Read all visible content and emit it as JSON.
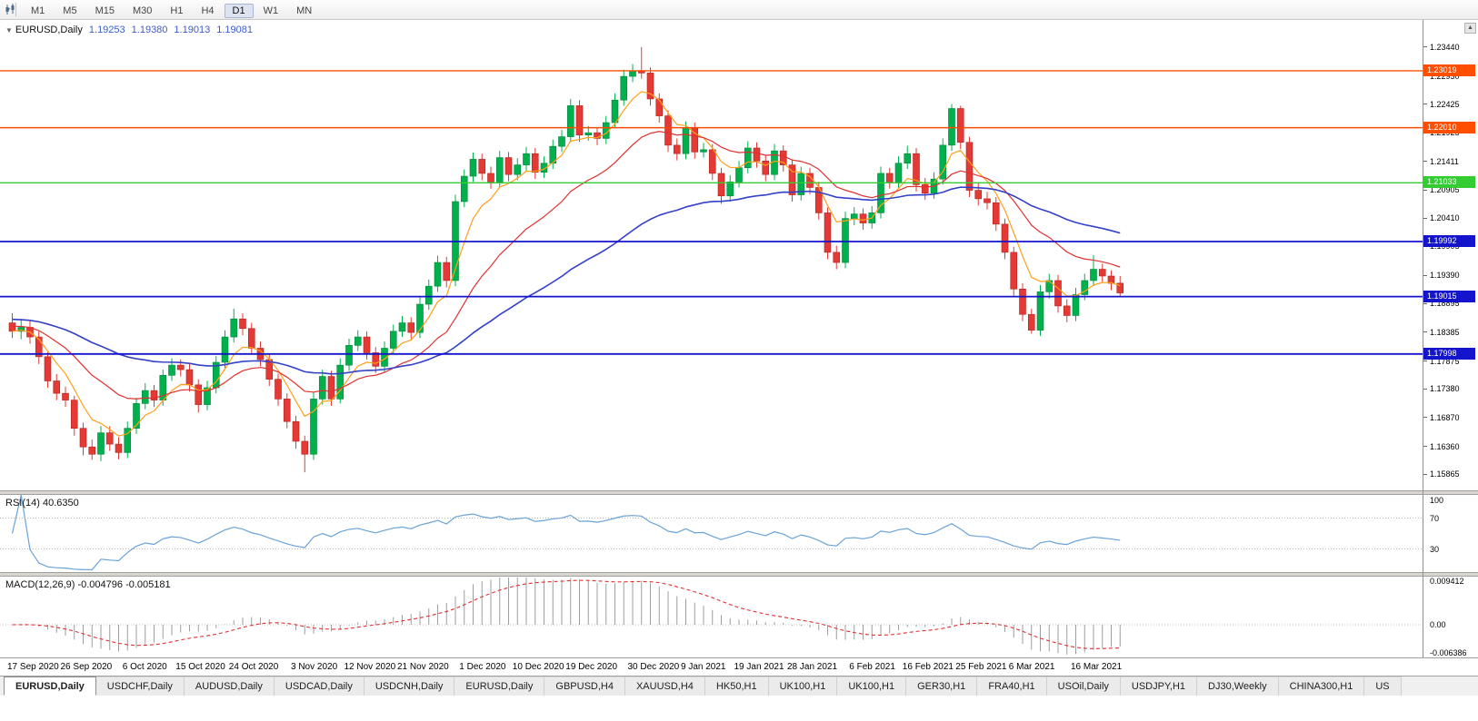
{
  "toolbar": {
    "timeframes": [
      "M1",
      "M5",
      "M15",
      "M30",
      "H1",
      "H4",
      "D1",
      "W1",
      "MN"
    ],
    "active_timeframe": "D1"
  },
  "icons": {
    "collapse": "▼",
    "dropdown_caret": "▾",
    "scroll_up": "▲"
  },
  "chart": {
    "title": "EURUSD,Daily",
    "ohlc": {
      "open": "1.19253",
      "high": "1.19380",
      "low": "1.19013",
      "close": "1.19081"
    },
    "price_axis_ticks": [
      "1.23440",
      "1.22930",
      "1.22425",
      "1.21925",
      "1.21411",
      "1.20905",
      "1.20410",
      "1.19905",
      "1.19390",
      "1.18895",
      "1.18385",
      "1.17875",
      "1.17380",
      "1.16870",
      "1.16360",
      "1.15865"
    ],
    "hlines": [
      {
        "price": 1.23019,
        "label": "1.23019",
        "color": "#ff4e00",
        "width": 1.4
      },
      {
        "price": 1.2201,
        "label": "1.22010",
        "color": "#ff4e00",
        "width": 1.4
      },
      {
        "price": 1.21033,
        "label": "1.21033",
        "color": "#33cc33",
        "width": 1.4
      },
      {
        "price": 1.19992,
        "label": "1.19992",
        "color": "#1414cc",
        "width": 1.8
      },
      {
        "price": 1.19015,
        "label": "1.19015",
        "color": "#1414cc",
        "width": 1.8
      },
      {
        "price": 1.17998,
        "label": "1.17998",
        "color": "#1414cc",
        "width": 1.8
      }
    ],
    "colors": {
      "up": "#00b04c",
      "up_border": "#00843a",
      "down": "#e53935",
      "down_border": "#b02421",
      "ma_fast": "#ff9f1a",
      "ma_mid": "#e03030",
      "ma_slow": "#3340c8",
      "rsi": "#6aa3d8",
      "macd_hist": "#9e9e9e",
      "macd_signal": "#e03030"
    }
  },
  "rsi": {
    "label": "RSI(14) 40.6350",
    "ticks": [
      "100",
      "70",
      "30"
    ]
  },
  "macd": {
    "label": "MACD(12,26,9) -0.004796 -0.005181",
    "ticks": [
      "0.009412",
      "0.00",
      "-0.006386"
    ]
  },
  "tabs": [
    {
      "label": "EURUSD,Daily",
      "active": true
    },
    {
      "label": "USDCHF,Daily",
      "active": false
    },
    {
      "label": "AUDUSD,Daily",
      "active": false
    },
    {
      "label": "USDCAD,Daily",
      "active": false
    },
    {
      "label": "USDCNH,Daily",
      "active": false
    },
    {
      "label": "EURUSD,Daily",
      "active": false
    },
    {
      "label": "GBPUSD,H4",
      "active": false
    },
    {
      "label": "XAUUSD,H4",
      "active": false
    },
    {
      "label": "HK50,H1",
      "active": false
    },
    {
      "label": "UK100,H1",
      "active": false
    },
    {
      "label": "UK100,H1",
      "active": false
    },
    {
      "label": "GER30,H1",
      "active": false
    },
    {
      "label": "FRA40,H1",
      "active": false
    },
    {
      "label": "USOil,Daily",
      "active": false
    },
    {
      "label": "USDJPY,H1",
      "active": false
    },
    {
      "label": "DJ30,Weekly",
      "active": false
    },
    {
      "label": "CHINA300,H1",
      "active": false
    },
    {
      "label": "US",
      "active": false
    }
  ],
  "chart_data": {
    "type": "candlestick",
    "symbol": "EURUSD",
    "timeframe": "Daily",
    "price_range": [
      1.1558,
      1.2392
    ],
    "indicators": {
      "rsi_period": 14,
      "rsi_value": 40.635,
      "macd_params": "12,26,9",
      "macd_value": -0.004796,
      "macd_signal_value": -0.005181,
      "ma_periods": {
        "fast": 6,
        "mid": 18,
        "slow": 50
      }
    },
    "candles": [
      [
        1.1855,
        1.1872,
        1.1828,
        1.184
      ],
      [
        1.184,
        1.1862,
        1.1826,
        1.1847
      ],
      [
        1.1847,
        1.1858,
        1.1818,
        1.183
      ],
      [
        1.183,
        1.184,
        1.1782,
        1.1795
      ],
      [
        1.1795,
        1.1803,
        1.174,
        1.1752
      ],
      [
        1.1752,
        1.1764,
        1.1718,
        1.173
      ],
      [
        1.173,
        1.1742,
        1.1706,
        1.1718
      ],
      [
        1.1718,
        1.1726,
        1.1655,
        1.1668
      ],
      [
        1.1668,
        1.1678,
        1.162,
        1.1635
      ],
      [
        1.1635,
        1.1648,
        1.1612,
        1.1622
      ],
      [
        1.1622,
        1.1672,
        1.161,
        1.166
      ],
      [
        1.166,
        1.1672,
        1.1628,
        1.164
      ],
      [
        1.164,
        1.1652,
        1.1613,
        1.1625
      ],
      [
        1.1625,
        1.168,
        1.1615,
        1.1668
      ],
      [
        1.1668,
        1.1722,
        1.1658,
        1.1712
      ],
      [
        1.1712,
        1.1748,
        1.1702,
        1.1735
      ],
      [
        1.1735,
        1.1745,
        1.1706,
        1.1718
      ],
      [
        1.1718,
        1.1772,
        1.1708,
        1.1762
      ],
      [
        1.1762,
        1.1792,
        1.1752,
        1.178
      ],
      [
        1.178,
        1.179,
        1.176,
        1.1772
      ],
      [
        1.1772,
        1.1782,
        1.1733,
        1.1745
      ],
      [
        1.1745,
        1.1755,
        1.1696,
        1.171
      ],
      [
        1.171,
        1.1752,
        1.17,
        1.174
      ],
      [
        1.174,
        1.1796,
        1.173,
        1.1785
      ],
      [
        1.1785,
        1.1842,
        1.1775,
        1.183
      ],
      [
        1.183,
        1.188,
        1.182,
        1.1862
      ],
      [
        1.1862,
        1.1872,
        1.1833,
        1.1845
      ],
      [
        1.1845,
        1.1855,
        1.1798,
        1.181
      ],
      [
        1.181,
        1.1822,
        1.1778,
        1.179
      ],
      [
        1.179,
        1.18,
        1.1743,
        1.1755
      ],
      [
        1.1755,
        1.1765,
        1.1708,
        1.172
      ],
      [
        1.172,
        1.173,
        1.1668,
        1.168
      ],
      [
        1.168,
        1.169,
        1.1632,
        1.1645
      ],
      [
        1.1645,
        1.1655,
        1.159,
        1.1622
      ],
      [
        1.1622,
        1.1732,
        1.1612,
        1.172
      ],
      [
        1.172,
        1.1772,
        1.171,
        1.176
      ],
      [
        1.176,
        1.177,
        1.1708,
        1.172
      ],
      [
        1.172,
        1.1792,
        1.1712,
        1.178
      ],
      [
        1.178,
        1.1827,
        1.177,
        1.1815
      ],
      [
        1.1815,
        1.1842,
        1.1805,
        1.183
      ],
      [
        1.183,
        1.184,
        1.179,
        1.1802
      ],
      [
        1.1802,
        1.1812,
        1.1766,
        1.1778
      ],
      [
        1.1778,
        1.1822,
        1.1768,
        1.181
      ],
      [
        1.181,
        1.1852,
        1.18,
        1.184
      ],
      [
        1.184,
        1.1867,
        1.183,
        1.1855
      ],
      [
        1.1855,
        1.1865,
        1.1826,
        1.1838
      ],
      [
        1.1838,
        1.19,
        1.1828,
        1.1888
      ],
      [
        1.1888,
        1.1932,
        1.1878,
        1.192
      ],
      [
        1.192,
        1.1974,
        1.191,
        1.1962
      ],
      [
        1.1962,
        1.1972,
        1.1918,
        1.193
      ],
      [
        1.193,
        1.2082,
        1.192,
        1.207
      ],
      [
        1.207,
        1.2127,
        1.206,
        1.2115
      ],
      [
        1.2115,
        1.2157,
        1.2105,
        1.2145
      ],
      [
        1.2145,
        1.2155,
        1.2108,
        1.212
      ],
      [
        1.212,
        1.2132,
        1.2093,
        1.2105
      ],
      [
        1.2105,
        1.216,
        1.2095,
        1.2148
      ],
      [
        1.2148,
        1.2158,
        1.2106,
        1.2118
      ],
      [
        1.2118,
        1.2147,
        1.2108,
        1.2135
      ],
      [
        1.2135,
        1.2167,
        1.2125,
        1.2155
      ],
      [
        1.2155,
        1.2165,
        1.211,
        1.2122
      ],
      [
        1.2122,
        1.215,
        1.2112,
        1.2138
      ],
      [
        1.2138,
        1.218,
        1.2128,
        1.2168
      ],
      [
        1.2168,
        1.2197,
        1.2158,
        1.2185
      ],
      [
        1.2185,
        1.2252,
        1.2175,
        1.224
      ],
      [
        1.224,
        1.225,
        1.2176,
        1.2188
      ],
      [
        1.2188,
        1.2204,
        1.2178,
        1.2192
      ],
      [
        1.2192,
        1.2202,
        1.217,
        1.2182
      ],
      [
        1.2182,
        1.2222,
        1.2172,
        1.221
      ],
      [
        1.221,
        1.2262,
        1.22,
        1.225
      ],
      [
        1.225,
        1.2304,
        1.224,
        1.2292
      ],
      [
        1.2292,
        1.2314,
        1.2282,
        1.2302
      ],
      [
        1.2302,
        1.2344,
        1.2288,
        1.2298
      ],
      [
        1.2298,
        1.2308,
        1.224,
        1.2252
      ],
      [
        1.2252,
        1.2262,
        1.221,
        1.2222
      ],
      [
        1.2222,
        1.2232,
        1.2158,
        1.217
      ],
      [
        1.217,
        1.2182,
        1.2143,
        1.2155
      ],
      [
        1.2155,
        1.2212,
        1.2145,
        1.22
      ],
      [
        1.22,
        1.221,
        1.2146,
        1.2158
      ],
      [
        1.2158,
        1.2174,
        1.2148,
        1.2162
      ],
      [
        1.2162,
        1.2172,
        1.2108,
        1.212
      ],
      [
        1.212,
        1.213,
        1.2066,
        1.208
      ],
      [
        1.208,
        1.2117,
        1.207,
        1.2105
      ],
      [
        1.2105,
        1.2142,
        1.2095,
        1.213
      ],
      [
        1.213,
        1.2177,
        1.212,
        1.2165
      ],
      [
        1.2165,
        1.2175,
        1.213,
        1.2142
      ],
      [
        1.2142,
        1.2152,
        1.2106,
        1.2118
      ],
      [
        1.2118,
        1.2172,
        1.2108,
        1.216
      ],
      [
        1.216,
        1.217,
        1.2123,
        1.2135
      ],
      [
        1.2135,
        1.2145,
        1.207,
        1.2082
      ],
      [
        1.2082,
        1.2132,
        1.2072,
        1.212
      ],
      [
        1.212,
        1.213,
        1.2083,
        1.2095
      ],
      [
        1.2095,
        1.2105,
        1.2038,
        1.205
      ],
      [
        1.205,
        1.206,
        1.1968,
        1.198
      ],
      [
        1.198,
        1.1992,
        1.195,
        1.1962
      ],
      [
        1.1962,
        1.2052,
        1.1952,
        1.204
      ],
      [
        1.204,
        1.206,
        1.2028,
        1.2048
      ],
      [
        1.2048,
        1.2058,
        1.202,
        1.2032
      ],
      [
        1.2032,
        1.2062,
        1.2022,
        1.205
      ],
      [
        1.205,
        1.2132,
        1.204,
        1.212
      ],
      [
        1.212,
        1.213,
        1.2093,
        1.2105
      ],
      [
        1.2105,
        1.215,
        1.2095,
        1.2138
      ],
      [
        1.2138,
        1.2169,
        1.2128,
        1.2155
      ],
      [
        1.2155,
        1.2165,
        1.2088,
        1.21
      ],
      [
        1.21,
        1.2112,
        1.2073,
        1.2085
      ],
      [
        1.2085,
        1.2122,
        1.2075,
        1.211
      ],
      [
        1.211,
        1.2182,
        1.21,
        1.217
      ],
      [
        1.217,
        1.2243,
        1.216,
        1.2235
      ],
      [
        1.2235,
        1.224,
        1.2163,
        1.2175
      ],
      [
        1.2175,
        1.2185,
        1.2078,
        1.209
      ],
      [
        1.209,
        1.2102,
        1.2063,
        1.2075
      ],
      [
        1.2075,
        1.2087,
        1.2056,
        1.2068
      ],
      [
        1.2068,
        1.2078,
        1.2018,
        1.203
      ],
      [
        1.203,
        1.204,
        1.1968,
        1.198
      ],
      [
        1.198,
        1.199,
        1.1903,
        1.1915
      ],
      [
        1.1915,
        1.1925,
        1.1858,
        1.187
      ],
      [
        1.187,
        1.188,
        1.1836,
        1.1842
      ],
      [
        1.1842,
        1.1922,
        1.1832,
        1.191
      ],
      [
        1.191,
        1.1942,
        1.1898,
        1.193
      ],
      [
        1.193,
        1.194,
        1.1873,
        1.1885
      ],
      [
        1.1885,
        1.1897,
        1.1856,
        1.1868
      ],
      [
        1.1868,
        1.1917,
        1.1858,
        1.1905
      ],
      [
        1.1905,
        1.1942,
        1.1895,
        1.193
      ],
      [
        1.193,
        1.1975,
        1.192,
        1.195
      ],
      [
        1.195,
        1.196,
        1.1926,
        1.1938
      ],
      [
        1.1938,
        1.1948,
        1.1913,
        1.1925
      ],
      [
        1.19253,
        1.1938,
        1.19013,
        1.19081
      ]
    ],
    "date_labels": [
      [
        0,
        "17 Sep 2020"
      ],
      [
        6,
        "26 Sep 2020"
      ],
      [
        13,
        "6 Oct 2020"
      ],
      [
        19,
        "15 Oct 2020"
      ],
      [
        25,
        "24 Oct 2020"
      ],
      [
        32,
        "3 Nov 2020"
      ],
      [
        38,
        "12 Nov 2020"
      ],
      [
        44,
        "21 Nov 2020"
      ],
      [
        51,
        "1 Dec 2020"
      ],
      [
        57,
        "10 Dec 2020"
      ],
      [
        63,
        "19 Dec 2020"
      ],
      [
        70,
        "30 Dec 2020"
      ],
      [
        76,
        "9 Jan 2021"
      ],
      [
        82,
        "19 Jan 2021"
      ],
      [
        88,
        "28 Jan 2021"
      ],
      [
        95,
        "6 Feb 2021"
      ],
      [
        101,
        "16 Feb 2021"
      ],
      [
        107,
        "25 Feb 2021"
      ],
      [
        113,
        "6 Mar 2021"
      ],
      [
        120,
        "16 Mar 2021"
      ]
    ]
  }
}
